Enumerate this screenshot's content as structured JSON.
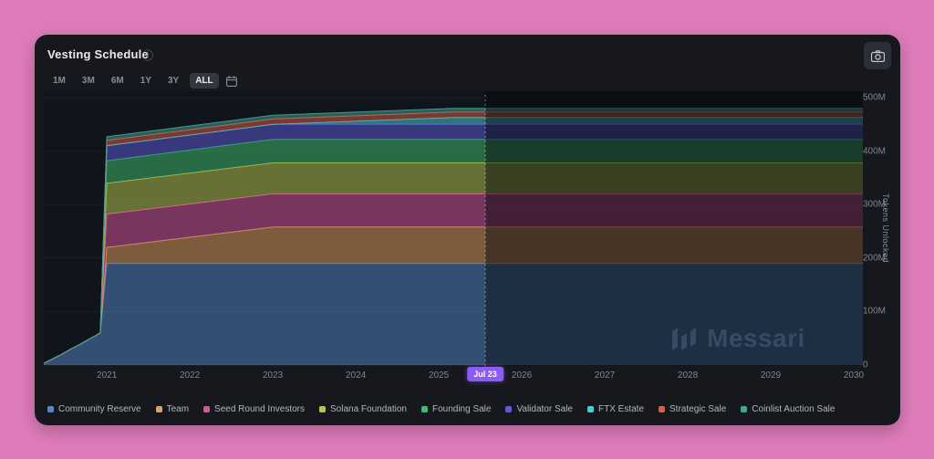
{
  "card": {
    "title": "Vesting Schedule"
  },
  "toolbar": {
    "ranges": [
      {
        "label": "1M",
        "active": false
      },
      {
        "label": "3M",
        "active": false
      },
      {
        "label": "6M",
        "active": false
      },
      {
        "label": "1Y",
        "active": false
      },
      {
        "label": "3Y",
        "active": false
      },
      {
        "label": "ALL",
        "active": true
      }
    ]
  },
  "tooltip": {
    "date_label": "Jul 23"
  },
  "watermark": {
    "text": "Messari"
  },
  "colors": {
    "background": "#de7cba",
    "card": "#16181d",
    "plot_background": "#10141b",
    "badge": "#8b5cf6",
    "watermark": "#3d4d6b",
    "future_overlay": "rgba(4,6,10,0.45)"
  },
  "chart_data": {
    "type": "area",
    "stacked": true,
    "title": "Vesting Schedule",
    "xlabel": "",
    "ylabel": "Tokens Unlocked",
    "values_unit": "millions of tokens",
    "x_domain": [
      2020.24,
      2030.11
    ],
    "y_domain_millions": [
      0,
      500
    ],
    "grid": true,
    "legend_position": "bottom",
    "x_ticks": [
      {
        "v": 2021,
        "label": "2021"
      },
      {
        "v": 2022,
        "label": "2022"
      },
      {
        "v": 2023,
        "label": "2023"
      },
      {
        "v": 2024,
        "label": "2024"
      },
      {
        "v": 2025,
        "label": "2025"
      },
      {
        "v": 2026,
        "label": "2026"
      },
      {
        "v": 2027,
        "label": "2027"
      },
      {
        "v": 2028,
        "label": "2028"
      },
      {
        "v": 2029,
        "label": "2029"
      },
      {
        "v": 2030,
        "label": "2030"
      }
    ],
    "y_ticks": [
      {
        "v": 0,
        "label": "0"
      },
      {
        "v": 100,
        "label": "100M"
      },
      {
        "v": 200,
        "label": "200M"
      },
      {
        "v": 300,
        "label": "300M"
      },
      {
        "v": 400,
        "label": "400M"
      },
      {
        "v": 500,
        "label": "500M"
      }
    ],
    "current_marker": {
      "x": 2025.56,
      "label": "Jul 23",
      "future_shaded": true
    },
    "series": [
      {
        "name": "Community Reserve",
        "color": "#5489c8",
        "points": [
          [
            2020.24,
            3
          ],
          [
            2020.33,
            3
          ],
          [
            2020.33,
            10
          ],
          [
            2020.42,
            10
          ],
          [
            2020.42,
            17
          ],
          [
            2020.5,
            17
          ],
          [
            2020.5,
            24
          ],
          [
            2020.58,
            24
          ],
          [
            2020.58,
            31
          ],
          [
            2020.67,
            31
          ],
          [
            2020.67,
            38
          ],
          [
            2020.75,
            38
          ],
          [
            2020.75,
            45
          ],
          [
            2020.83,
            45
          ],
          [
            2020.83,
            52
          ],
          [
            2020.92,
            52
          ],
          [
            2020.92,
            60
          ],
          [
            2021,
            60
          ],
          [
            2021,
            190
          ],
          [
            2030.11,
            190
          ]
        ]
      },
      {
        "name": "Team",
        "color": "#e0a05e",
        "points": [
          [
            2020.24,
            0
          ],
          [
            2021,
            0
          ],
          [
            2021,
            30
          ],
          [
            2023,
            68
          ],
          [
            2030.11,
            68
          ]
        ]
      },
      {
        "name": "Seed Round Investors",
        "color": "#d9559b",
        "points": [
          [
            2020.24,
            0
          ],
          [
            2021,
            0
          ],
          [
            2021,
            62
          ],
          [
            2030.11,
            62
          ]
        ]
      },
      {
        "name": "Solana Foundation",
        "color": "#b8c64f",
        "points": [
          [
            2020.24,
            0
          ],
          [
            2021,
            0
          ],
          [
            2021,
            58
          ],
          [
            2030.11,
            58
          ]
        ]
      },
      {
        "name": "Founding Sale",
        "color": "#3fbc6e",
        "points": [
          [
            2020.24,
            0
          ],
          [
            2021,
            0
          ],
          [
            2021,
            42
          ],
          [
            2023,
            44
          ],
          [
            2030.11,
            44
          ]
        ]
      },
      {
        "name": "Validator Sale",
        "color": "#5d5bd8",
        "points": [
          [
            2020.24,
            0
          ],
          [
            2021,
            0
          ],
          [
            2021,
            28
          ],
          [
            2030.11,
            28
          ]
        ]
      },
      {
        "name": "FTX Estate",
        "color": "#46cfd1",
        "points": [
          [
            2020.24,
            0
          ],
          [
            2025.17,
            0
          ],
          [
            2025.17,
            13
          ],
          [
            2030.11,
            13
          ]
        ]
      },
      {
        "name": "Strategic Sale",
        "color": "#d8604a",
        "points": [
          [
            2020.24,
            0
          ],
          [
            2021,
            0
          ],
          [
            2021,
            10
          ],
          [
            2030.11,
            10
          ]
        ]
      },
      {
        "name": "Coinlist Auction Sale",
        "color": "#47a195",
        "points": [
          [
            2020.24,
            0
          ],
          [
            2021,
            0
          ],
          [
            2021,
            7
          ],
          [
            2030.11,
            7
          ]
        ]
      }
    ]
  }
}
